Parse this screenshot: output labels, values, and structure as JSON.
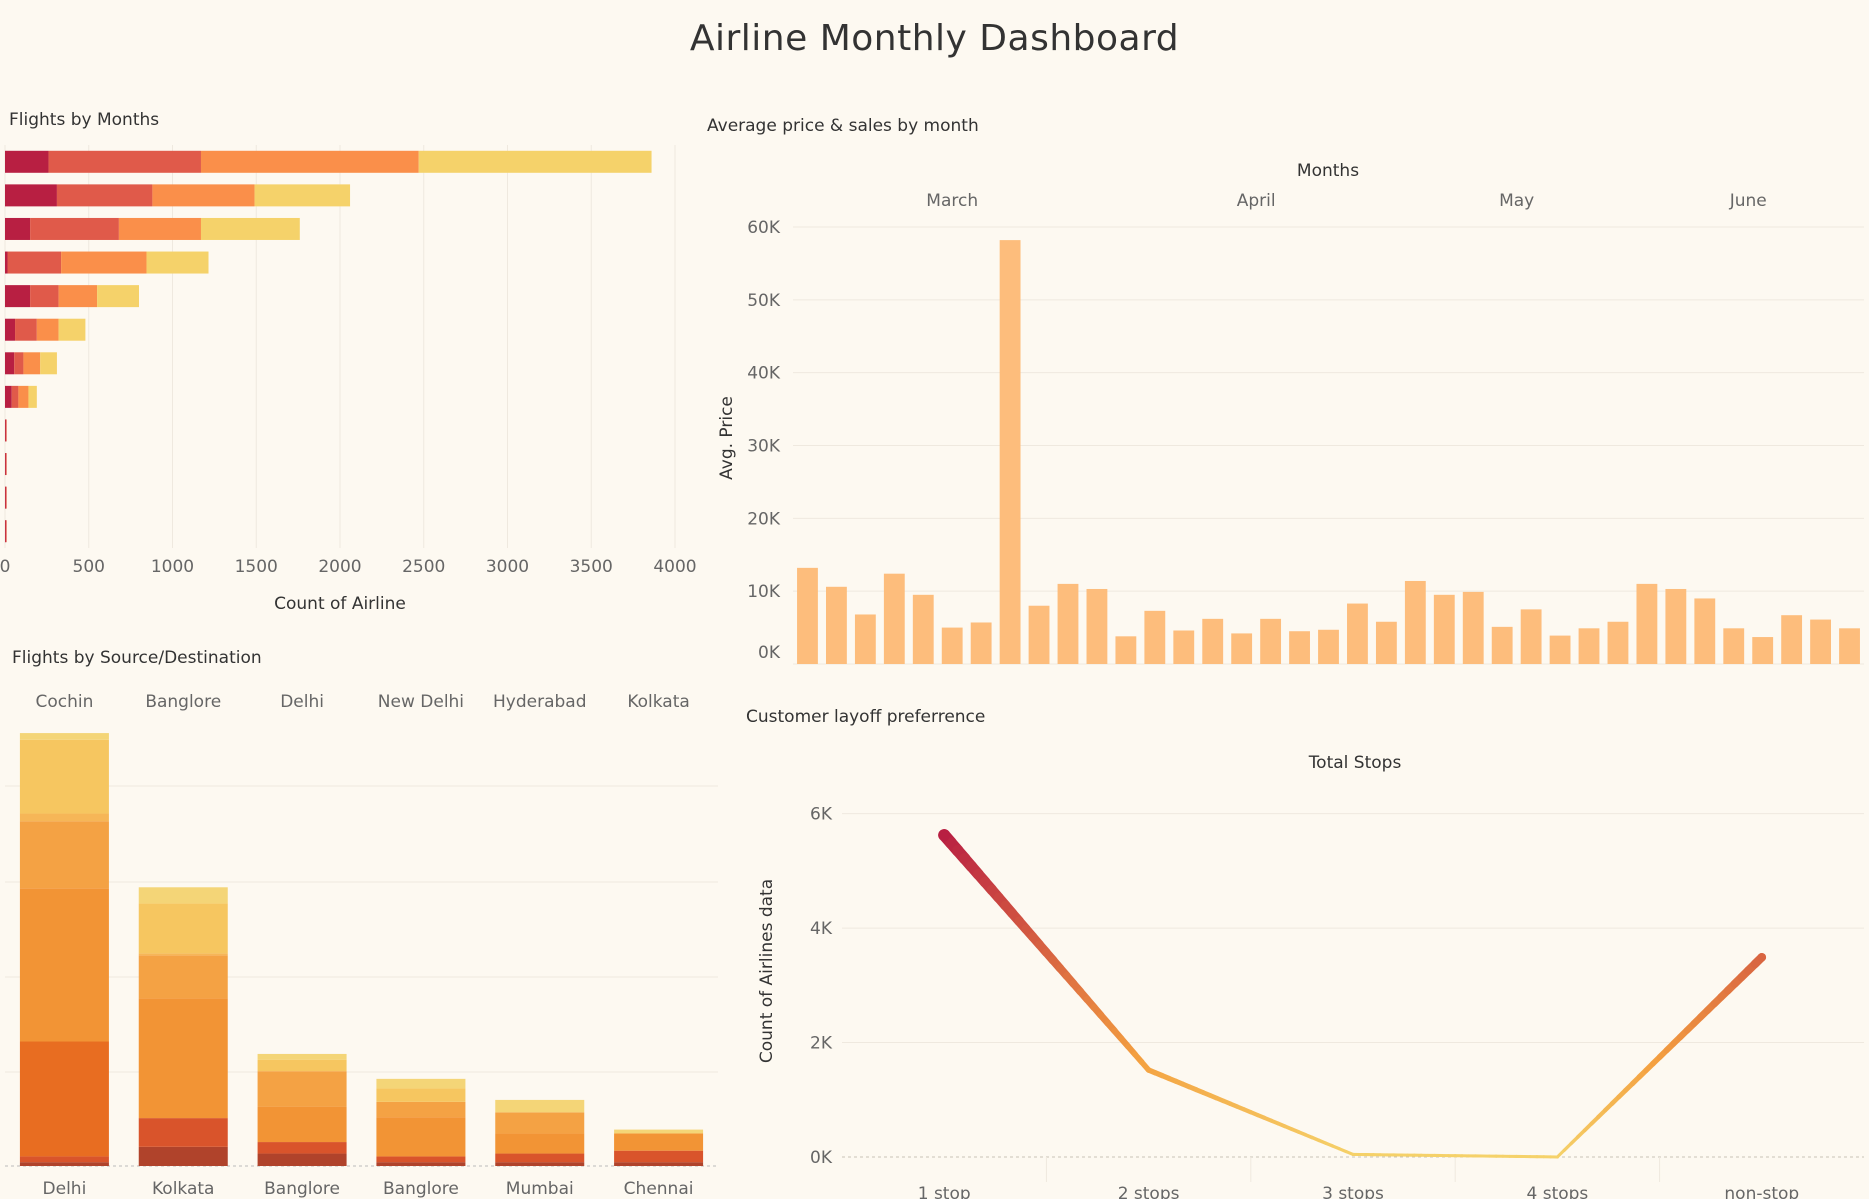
{
  "dashboard": {
    "title": "Airline Monthly Dashboard"
  },
  "colors": {
    "background": "#fdf9f1",
    "grid": "#efe9df",
    "priceBar": "#fdbd7c"
  },
  "chart_data": [
    {
      "id": "flights_by_months",
      "type": "bar",
      "orientation": "horizontal",
      "stacked": true,
      "title": "Flights by Months",
      "xlabel": "Count of Airline",
      "xlim": [
        0,
        4000
      ],
      "xticks": [
        0,
        500,
        1000,
        1500,
        2000,
        2500,
        3000,
        3500,
        4000
      ],
      "series_colors": [
        "#b81f42",
        "#e05a4a",
        "#fa8f4a",
        "#f5d26a"
      ],
      "rows": [
        [
          260,
          910,
          1300,
          1390
        ],
        [
          310,
          570,
          610,
          570
        ],
        [
          150,
          530,
          490,
          590
        ],
        [
          15,
          320,
          510,
          370
        ],
        [
          150,
          170,
          230,
          250
        ],
        [
          60,
          130,
          130,
          160
        ],
        [
          55,
          55,
          100,
          100
        ],
        [
          40,
          40,
          60,
          50
        ],
        [
          4,
          3,
          0,
          0
        ],
        [
          4,
          3,
          0,
          0
        ],
        [
          4,
          3,
          0,
          0
        ],
        [
          4,
          3,
          0,
          0
        ]
      ]
    },
    {
      "id": "avg_price_by_month",
      "type": "bar",
      "title": "Average price & sales by month",
      "header_label": "Months",
      "months": [
        "March",
        "April",
        "May",
        "June"
      ],
      "month_sizes": [
        11,
        10,
        8,
        8
      ],
      "ylabel": "Avg. Price",
      "ylim": [
        0,
        60000
      ],
      "yticks": [
        0,
        10000,
        20000,
        30000,
        40000,
        50000,
        60000
      ],
      "ytick_labels": [
        "0K",
        "10K",
        "20K",
        "30K",
        "40K",
        "50K",
        "60K"
      ],
      "values": [
        13200,
        10600,
        6800,
        12400,
        9500,
        5000,
        5700,
        58200,
        8000,
        11000,
        10300,
        3800,
        7300,
        4600,
        6200,
        4200,
        6200,
        4500,
        4700,
        8300,
        5800,
        11400,
        9500,
        9900,
        5100,
        7500,
        3900,
        4900,
        5800,
        11000,
        10300,
        9000,
        4900,
        3700,
        6700,
        6100,
        4900
      ]
    },
    {
      "id": "flights_by_source_destination",
      "type": "bar",
      "stacked": true,
      "title": "Flights by Source/Destination",
      "sources": [
        "Cochin",
        "Banglore",
        "Delhi",
        "New Delhi",
        "Hyderabad",
        "Kolkata"
      ],
      "destinations": [
        "Delhi",
        "Kolkata",
        "Banglore",
        "Banglore",
        "Mumbai",
        "Chennai"
      ],
      "ylim": [
        0,
        4500
      ],
      "segment_colors": [
        "#b0432b",
        "#d9542b",
        "#e86d21",
        "#f29435",
        "#f4a244",
        "#f6b657",
        "#f6c660",
        "#f4d577"
      ],
      "stacks": [
        [
          40,
          60,
          1200,
          1600,
          700,
          80,
          770,
          70
        ],
        [
          200,
          300,
          0,
          1250,
          450,
          20,
          520,
          170
        ],
        [
          130,
          120,
          0,
          370,
          370,
          0,
          120,
          60
        ],
        [
          40,
          60,
          0,
          410,
          160,
          0,
          140,
          100
        ],
        [
          40,
          90,
          0,
          210,
          220,
          0,
          0,
          130
        ],
        [
          40,
          120,
          0,
          180,
          0,
          0,
          0,
          40
        ]
      ]
    },
    {
      "id": "customer_layoff_preference",
      "type": "line",
      "title": "Customer layoff preferrence",
      "header_label": "Total Stops",
      "ylabel": "Count of Airlines data",
      "categories": [
        "1 stop",
        "2 stops",
        "3 stops",
        "4 stops",
        "non-stop"
      ],
      "values": [
        5625,
        1520,
        45,
        1,
        3490
      ],
      "ylim": [
        0,
        6500
      ],
      "yticks": [
        0,
        2000,
        4000,
        6000
      ],
      "ytick_labels": [
        "0K",
        "2K",
        "4K",
        "6K"
      ],
      "color_low": "#f5d26a",
      "color_mid": "#f4a040",
      "color_high": "#b81f42"
    }
  ]
}
